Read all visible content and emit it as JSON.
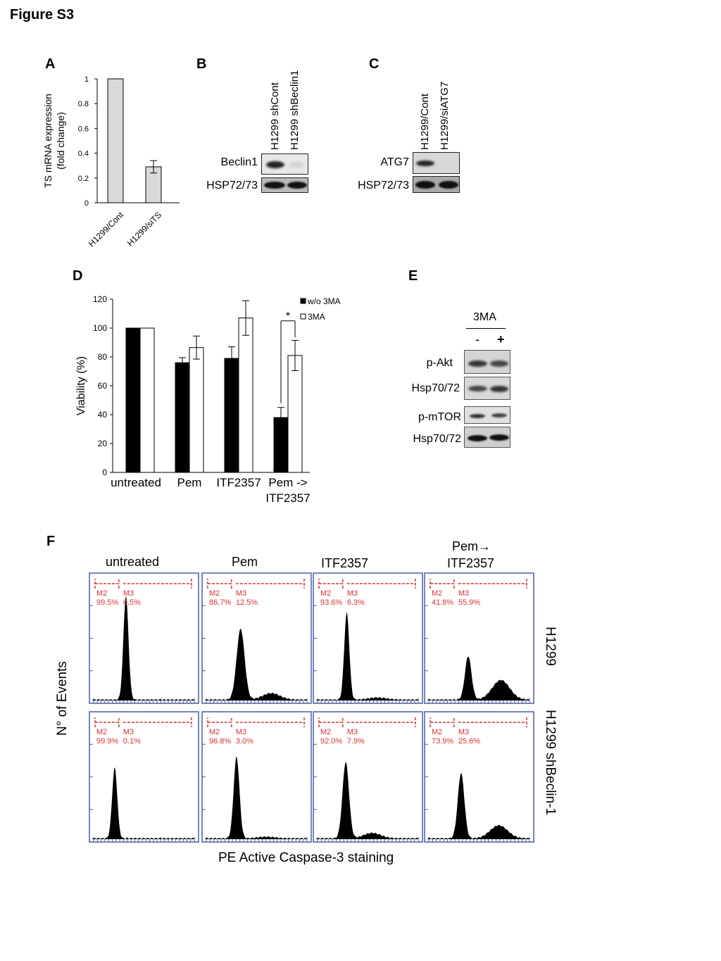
{
  "figure_title": "Figure S3",
  "panels": {
    "A": "A",
    "B": "B",
    "C": "C",
    "D": "D",
    "E": "E",
    "F": "F"
  },
  "chart_data": [
    {
      "id": "A",
      "type": "bar",
      "categories": [
        "H1299/Cont",
        "H1299/siTS"
      ],
      "values": [
        1.0,
        0.29
      ],
      "errors": [
        0.0,
        0.05
      ],
      "ylabel": "TS mRNA expression\n(fold change)",
      "ylabel_line1": "TS mRNA expression",
      "ylabel_line2": "(fold change)",
      "ylim": [
        0,
        1
      ],
      "yticks": [
        "0",
        "0.2",
        "0.4",
        "0.6",
        "0.8",
        "1"
      ],
      "grid": false
    },
    {
      "id": "D",
      "type": "bar",
      "categories": [
        "untreated",
        "Pem",
        "ITF2357",
        "Pem ->\nITF2357"
      ],
      "category_lines": [
        [
          "untreated"
        ],
        [
          "Pem"
        ],
        [
          "ITF2357"
        ],
        [
          "Pem ->",
          "ITF2357"
        ]
      ],
      "series": [
        {
          "name": "w/o 3MA",
          "values": [
            100,
            76,
            79,
            38
          ],
          "errors": [
            0,
            3.5,
            8,
            7
          ],
          "color": "#000000"
        },
        {
          "name": "3MA",
          "values": [
            100,
            86.5,
            107,
            81
          ],
          "errors": [
            0,
            8,
            12,
            10.5
          ],
          "color": "#ffffff"
        }
      ],
      "ylabel": "Viability (%)",
      "ylim": [
        0,
        120
      ],
      "yticks": [
        "0",
        "20",
        "40",
        "60",
        "80",
        "100",
        "120"
      ],
      "annotation": "*",
      "legend": "top-right",
      "grid": false
    }
  ],
  "panel_B": {
    "lane_labels": [
      "H1299 shCont",
      "H1299 shBeclin1"
    ],
    "rows": [
      "Beclin1",
      "HSP72/73"
    ]
  },
  "panel_C": {
    "lane_labels": [
      "H1299/Cont",
      "H1299/siATG7"
    ],
    "rows": [
      "ATG7",
      "HSP72/73"
    ]
  },
  "panel_E": {
    "treatment": "3MA",
    "minus": "-",
    "plus": "+",
    "rows": [
      "p-Akt",
      "Hsp70/72",
      "p-mTOR",
      "Hsp70/72"
    ]
  },
  "panel_F": {
    "columns": [
      "untreated",
      "Pem",
      "ITF2357"
    ],
    "last_column_line1": "Pem→",
    "last_column_line2": "ITF2357",
    "row_labels": [
      "H1299",
      "H1299 shBeclin-1"
    ],
    "ylabel": "N° of Events",
    "xlabel": "PE Active Caspase-3 staining",
    "gate_left": "M2",
    "gate_right": "M3",
    "histograms": [
      {
        "m2": "99.5%",
        "m3": "0.5%"
      },
      {
        "m2": "86.7%",
        "m3": "12.5%"
      },
      {
        "m2": "93.6%",
        "m3": "6.3%"
      },
      {
        "m2": "41.8%",
        "m3": "55.9%"
      },
      {
        "m2": "99.9%",
        "m3": "0.1%"
      },
      {
        "m2": "96.8%",
        "m3": "3.0%"
      },
      {
        "m2": "92.0%",
        "m3": "7.9%"
      },
      {
        "m2": "73.9%",
        "m3": "25.6%"
      }
    ]
  }
}
